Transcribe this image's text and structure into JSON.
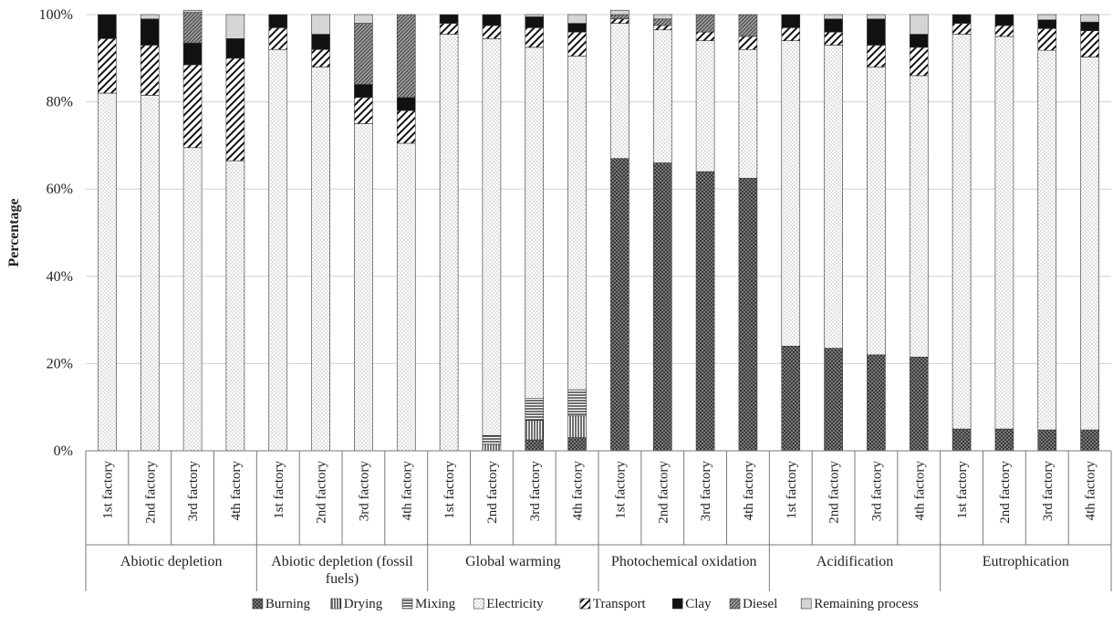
{
  "chart_data": {
    "type": "bar",
    "stacked": true,
    "title": "",
    "ylabel": "Percentage",
    "ylim": [
      0,
      100
    ],
    "y_ticks": [
      "0%",
      "20%",
      "40%",
      "60%",
      "80%",
      "100%"
    ],
    "legend_position": "bottom",
    "groups": [
      {
        "label": "Abiotic depletion",
        "categories": [
          "1st factory",
          "2nd factory",
          "3rd factory",
          "4th factory"
        ]
      },
      {
        "label": "Abiotic depletion (fossil fuels)",
        "categories": [
          "1st factory",
          "2nd factory",
          "3rd factory",
          "4th factory"
        ]
      },
      {
        "label": "Global warming",
        "categories": [
          "1st factory",
          "2nd factory",
          "3rd factory",
          "4th factory"
        ]
      },
      {
        "label": "Photochemical oxidation",
        "categories": [
          "1st factory",
          "2nd factory",
          "3rd factory",
          "4th factory"
        ]
      },
      {
        "label": "Acidification",
        "categories": [
          "1st factory",
          "2nd factory",
          "3rd factory",
          "4th factory"
        ]
      },
      {
        "label": "Eutrophication",
        "categories": [
          "1st factory",
          "2nd factory",
          "3rd factory",
          "4th factory"
        ]
      }
    ],
    "series": [
      {
        "name": "Burning",
        "pattern": "crosshatch",
        "values": [
          0,
          0,
          0,
          0,
          0,
          0,
          0,
          0,
          0,
          0,
          2.5,
          3,
          67,
          66,
          64,
          62.5,
          24,
          23.5,
          22,
          21.5,
          5,
          5,
          4.8,
          4.8
        ]
      },
      {
        "name": "Drying",
        "pattern": "vertical-lines",
        "values": [
          0,
          0,
          0,
          0,
          0,
          0,
          0,
          0,
          0,
          1.5,
          4.5,
          5,
          0,
          0,
          0,
          0,
          0,
          0,
          0,
          0,
          0,
          0,
          0,
          0
        ]
      },
      {
        "name": "Mixing",
        "pattern": "horizontal-lines",
        "values": [
          0,
          0,
          0,
          0,
          0,
          0,
          0,
          0,
          0,
          2,
          5,
          6,
          0,
          0,
          0,
          0,
          0,
          0,
          0,
          0,
          0,
          0,
          0,
          0
        ]
      },
      {
        "name": "Electricity",
        "pattern": "dots",
        "values": [
          82,
          81.5,
          69.5,
          66.5,
          92,
          88,
          75,
          70.5,
          95.5,
          91,
          80.5,
          76.5,
          31,
          30.5,
          30,
          29.5,
          70,
          69.5,
          66,
          64.5,
          90.5,
          90,
          87,
          85.5
        ]
      },
      {
        "name": "Transport",
        "pattern": "wide-diagonal",
        "values": [
          12.5,
          11.5,
          19,
          23.5,
          5,
          4,
          6,
          7.5,
          2.5,
          3,
          4.5,
          5.5,
          1,
          1,
          2,
          3,
          3,
          3,
          5,
          6.5,
          2.5,
          2.5,
          5,
          6
        ]
      },
      {
        "name": "Clay",
        "pattern": "solid-black",
        "values": [
          5.5,
          6,
          5,
          4.5,
          3,
          3.5,
          3,
          3,
          2,
          2.5,
          2.5,
          2,
          0,
          0,
          0,
          0,
          3,
          3,
          6,
          3,
          2,
          2.5,
          2,
          2
        ]
      },
      {
        "name": "Diesel",
        "pattern": "dense-diagonal",
        "values": [
          0,
          0,
          7,
          0,
          0,
          0,
          14,
          19,
          0,
          0,
          0,
          0,
          1,
          1.5,
          4,
          5,
          0,
          0,
          0,
          0,
          0,
          0,
          0,
          0
        ]
      },
      {
        "name": "Remaining process",
        "pattern": "light-fill",
        "values": [
          0,
          1,
          0.5,
          5.5,
          0,
          4.5,
          2,
          0,
          0,
          0,
          0.5,
          2,
          1,
          1,
          0,
          0,
          0,
          1,
          1,
          4.5,
          0,
          0,
          1.2,
          1.7
        ]
      }
    ]
  }
}
